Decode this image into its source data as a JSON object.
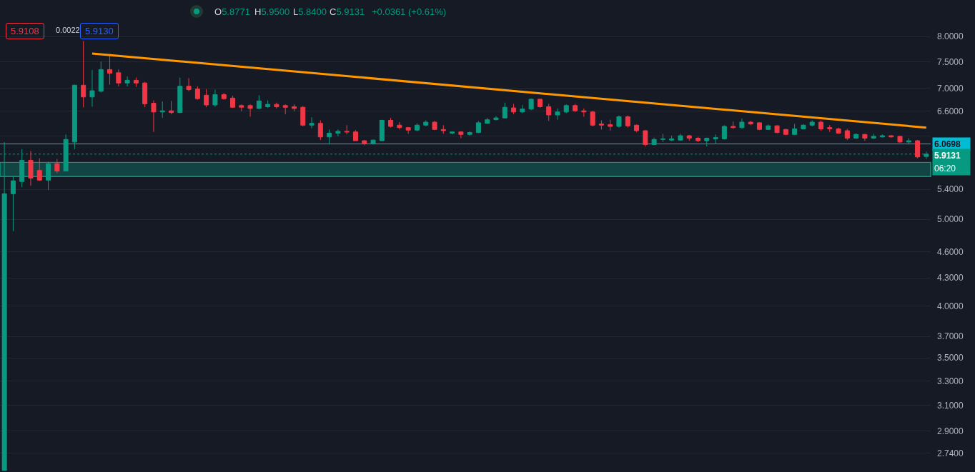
{
  "chart_data": {
    "type": "candlestick",
    "categories": [
      null,
      null,
      null,
      null,
      null,
      null,
      null,
      null,
      null,
      null,
      null,
      null,
      null,
      null,
      null,
      null,
      null,
      null,
      null,
      null,
      null,
      null,
      null,
      null,
      null,
      null,
      null,
      null,
      null,
      null,
      null,
      null,
      null,
      null,
      null,
      null,
      null,
      null,
      null,
      null,
      null,
      null,
      null,
      null,
      null,
      null,
      null,
      null,
      null,
      null,
      null,
      null,
      null,
      null,
      null,
      null,
      null,
      null,
      null,
      null,
      null,
      null,
      null,
      null,
      null,
      null,
      null,
      null,
      null,
      null,
      null,
      null,
      null,
      null,
      null,
      null,
      null,
      null,
      null,
      null,
      null,
      null,
      null,
      null,
      null,
      null,
      null,
      null,
      null,
      null,
      null,
      null,
      null,
      null,
      null,
      null,
      null,
      null,
      null,
      null,
      null,
      null,
      null,
      null,
      null,
      null
    ],
    "ohlc": [
      [
        2.62,
        6.1,
        2.62,
        5.34
      ],
      [
        5.34,
        5.59,
        4.85,
        5.52
      ],
      [
        5.51,
        5.99,
        5.43,
        5.82
      ],
      [
        5.82,
        5.96,
        5.45,
        5.56
      ],
      [
        5.67,
        5.85,
        5.52,
        5.53
      ],
      [
        5.53,
        5.8,
        5.39,
        5.77
      ],
      [
        5.77,
        5.84,
        5.63,
        5.66
      ],
      [
        5.66,
        6.22,
        5.66,
        6.14
      ],
      [
        6.1,
        7.07,
        5.99,
        7.06
      ],
      [
        7.06,
        7.91,
        6.67,
        6.85
      ],
      [
        6.85,
        7.34,
        6.68,
        6.96
      ],
      [
        6.95,
        7.5,
        6.93,
        7.35
      ],
      [
        7.35,
        7.65,
        7.07,
        7.28
      ],
      [
        7.29,
        7.35,
        7.04,
        7.1
      ],
      [
        7.1,
        7.22,
        7.04,
        7.15
      ],
      [
        7.15,
        7.2,
        7.03,
        7.1
      ],
      [
        7.1,
        7.12,
        6.67,
        6.73
      ],
      [
        6.74,
        6.79,
        6.26,
        6.59
      ],
      [
        6.59,
        6.77,
        6.49,
        6.61
      ],
      [
        6.61,
        6.78,
        6.55,
        6.58
      ],
      [
        6.58,
        7.2,
        6.57,
        7.04
      ],
      [
        7.04,
        7.19,
        6.95,
        6.98
      ],
      [
        6.99,
        7.04,
        6.8,
        6.82
      ],
      [
        6.88,
        6.99,
        6.67,
        6.71
      ],
      [
        6.71,
        6.98,
        6.68,
        6.89
      ],
      [
        6.89,
        6.92,
        6.8,
        6.82
      ],
      [
        6.83,
        6.87,
        6.66,
        6.67
      ],
      [
        6.7,
        6.72,
        6.6,
        6.67
      ],
      [
        6.7,
        6.72,
        6.51,
        6.65
      ],
      [
        6.65,
        6.88,
        6.64,
        6.78
      ],
      [
        6.68,
        6.79,
        6.66,
        6.72
      ],
      [
        6.72,
        6.75,
        6.65,
        6.68
      ],
      [
        6.7,
        6.72,
        6.55,
        6.67
      ],
      [
        6.68,
        6.72,
        6.6,
        6.65
      ],
      [
        6.67,
        6.69,
        6.35,
        6.37
      ],
      [
        6.37,
        6.5,
        6.32,
        6.4
      ],
      [
        6.4,
        6.45,
        6.13,
        6.18
      ],
      [
        6.18,
        6.3,
        6.06,
        6.24
      ],
      [
        6.24,
        6.3,
        6.19,
        6.27
      ],
      [
        6.27,
        6.37,
        6.22,
        6.26
      ],
      [
        6.26,
        6.29,
        6.12,
        6.12
      ],
      [
        6.12,
        6.13,
        6.05,
        6.07
      ],
      [
        6.07,
        6.14,
        6.06,
        6.13
      ],
      [
        6.12,
        6.46,
        6.11,
        6.45
      ],
      [
        6.45,
        6.49,
        6.33,
        6.35
      ],
      [
        6.37,
        6.42,
        6.3,
        6.33
      ],
      [
        6.33,
        6.34,
        6.23,
        6.29
      ],
      [
        6.29,
        6.4,
        6.27,
        6.37
      ],
      [
        6.37,
        6.45,
        6.35,
        6.42
      ],
      [
        6.42,
        6.44,
        6.29,
        6.3
      ],
      [
        6.3,
        6.37,
        6.23,
        6.28
      ],
      [
        6.24,
        6.27,
        6.22,
        6.26
      ],
      [
        6.26,
        6.27,
        6.16,
        6.22
      ],
      [
        6.22,
        6.27,
        6.2,
        6.25
      ],
      [
        6.25,
        6.44,
        6.24,
        6.41
      ],
      [
        6.4,
        6.49,
        6.39,
        6.46
      ],
      [
        6.46,
        6.52,
        6.45,
        6.49
      ],
      [
        6.49,
        6.75,
        6.48,
        6.67
      ],
      [
        6.66,
        6.73,
        6.55,
        6.59
      ],
      [
        6.59,
        6.71,
        6.57,
        6.64
      ],
      [
        6.64,
        6.82,
        6.62,
        6.81
      ],
      [
        6.81,
        6.82,
        6.66,
        6.68
      ],
      [
        6.68,
        6.73,
        6.44,
        6.54
      ],
      [
        6.54,
        6.65,
        6.46,
        6.59
      ],
      [
        6.59,
        6.72,
        6.57,
        6.7
      ],
      [
        6.7,
        6.73,
        6.59,
        6.61
      ],
      [
        6.61,
        6.65,
        6.51,
        6.59
      ],
      [
        6.59,
        6.61,
        6.35,
        6.37
      ],
      [
        6.39,
        6.45,
        6.3,
        6.37
      ],
      [
        6.38,
        6.46,
        6.28,
        6.35
      ],
      [
        6.35,
        6.53,
        6.33,
        6.51
      ],
      [
        6.51,
        6.53,
        6.33,
        6.36
      ],
      [
        6.37,
        6.38,
        6.26,
        6.28
      ],
      [
        6.28,
        6.29,
        6.03,
        6.06
      ],
      [
        6.06,
        6.17,
        6.05,
        6.14
      ],
      [
        6.14,
        6.23,
        6.1,
        6.15
      ],
      [
        6.13,
        6.2,
        6.11,
        6.15
      ],
      [
        6.13,
        6.23,
        6.12,
        6.2
      ],
      [
        6.2,
        6.21,
        6.12,
        6.16
      ],
      [
        6.16,
        6.18,
        6.1,
        6.12
      ],
      [
        6.12,
        6.17,
        6.03,
        6.16
      ],
      [
        6.15,
        6.22,
        6.07,
        6.17
      ],
      [
        6.15,
        6.37,
        6.14,
        6.35
      ],
      [
        6.35,
        6.43,
        6.31,
        6.33
      ],
      [
        6.33,
        6.48,
        6.31,
        6.42
      ],
      [
        6.42,
        6.44,
        6.37,
        6.39
      ],
      [
        6.41,
        6.42,
        6.29,
        6.3
      ],
      [
        6.3,
        6.38,
        6.29,
        6.36
      ],
      [
        6.36,
        6.37,
        6.24,
        6.25
      ],
      [
        6.3,
        6.31,
        6.21,
        6.22
      ],
      [
        6.22,
        6.39,
        6.21,
        6.31
      ],
      [
        6.31,
        6.39,
        6.3,
        6.37
      ],
      [
        6.37,
        6.45,
        6.35,
        6.42
      ],
      [
        6.42,
        6.45,
        6.28,
        6.31
      ],
      [
        6.33,
        6.37,
        6.26,
        6.31
      ],
      [
        6.31,
        6.33,
        6.23,
        6.24
      ],
      [
        6.28,
        6.31,
        6.13,
        6.16
      ],
      [
        6.16,
        6.24,
        6.15,
        6.22
      ],
      [
        6.22,
        6.23,
        6.12,
        6.16
      ],
      [
        6.16,
        6.23,
        6.15,
        6.19
      ],
      [
        6.18,
        6.22,
        6.17,
        6.2
      ],
      [
        6.2,
        6.21,
        6.17,
        6.18
      ],
      [
        6.19,
        6.2,
        6.09,
        6.1
      ],
      [
        6.1,
        6.16,
        6.06,
        6.12
      ],
      [
        6.12,
        6.13,
        5.85,
        5.87
      ],
      [
        5.8771,
        5.95,
        5.84,
        5.9131
      ]
    ],
    "colors": [
      "#089981",
      "#089981",
      "#089981",
      "#f23645",
      "#f23645",
      "#089981",
      "#f23645",
      "#089981",
      "#089981",
      "#f23645",
      "#089981",
      "#089981",
      "#f23645",
      "#f23645",
      "#089981",
      "#f23645",
      "#f23645",
      "#f23645",
      "#089981",
      "#f23645",
      "#089981",
      "#f23645",
      "#f23645",
      "#f23645",
      "#089981",
      "#f23645",
      "#f23645",
      "#f23645",
      "#f23645",
      "#089981",
      "#089981",
      "#f23645",
      "#f23645",
      "#f23645",
      "#f23645",
      "#089981",
      "#f23645",
      "#089981",
      "#089981",
      "#f23645",
      "#f23645",
      "#f23645",
      "#089981",
      "#089981",
      "#f23645",
      "#f23645",
      "#f23645",
      "#089981",
      "#089981",
      "#f23645",
      "#f23645",
      "#089981",
      "#f23645",
      "#089981",
      "#089981",
      "#089981",
      "#089981",
      "#089981",
      "#f23645",
      "#089981",
      "#089981",
      "#f23645",
      "#f23645",
      "#089981",
      "#089981",
      "#f23645",
      "#f23645",
      "#f23645",
      "#f23645",
      "#f23645",
      "#089981",
      "#f23645",
      "#f23645",
      "#f23645",
      "#089981",
      "#089981",
      "#089981",
      "#089981",
      "#f23645",
      "#f23645",
      "#089981",
      "#089981",
      "#089981",
      "#f23645",
      "#089981",
      "#f23645",
      "#f23645",
      "#089981",
      "#f23645",
      "#f23645",
      "#089981",
      "#089981",
      "#089981",
      "#f23645",
      "#f23645",
      "#f23645",
      "#f23645",
      "#089981",
      "#f23645",
      "#089981",
      "#089981",
      "#f23645",
      "#f23645",
      "#089981",
      "#f23645",
      "#089981"
    ],
    "series": [
      {
        "type": "line",
        "color": "#ff9800",
        "values": [
          null,
          null,
          null,
          null,
          null,
          null,
          null,
          null,
          null,
          null,
          7.66,
          null,
          null,
          null,
          null,
          null,
          null,
          null,
          null,
          null,
          null,
          null,
          null,
          null,
          null,
          null,
          null,
          null,
          null,
          null,
          null,
          null,
          null,
          null,
          null,
          null,
          null,
          null,
          null,
          null,
          null,
          null,
          null,
          null,
          null,
          null,
          null,
          null,
          null,
          null,
          null,
          null,
          null,
          null,
          null,
          null,
          null,
          null,
          null,
          null,
          null,
          null,
          null,
          null,
          null,
          null,
          null,
          null,
          null,
          null,
          null,
          null,
          null,
          null,
          null,
          null,
          null,
          null,
          null,
          null,
          null,
          null,
          null,
          null,
          null,
          null,
          null,
          null,
          null,
          null,
          null,
          null,
          null,
          null,
          null,
          null,
          null,
          null,
          null,
          null,
          null,
          null,
          null,
          null,
          null,
          6.33
        ]
      }
    ],
    "ylim": [
      2.61,
      8.79
    ],
    "yticks": [
      {
        "value": 8,
        "label": "8.0000"
      },
      {
        "value": 7.5,
        "label": "7.5000"
      },
      {
        "value": 7,
        "label": "7.0000"
      },
      {
        "value": 6.6,
        "label": "6.6000"
      },
      {
        "value": 6.2,
        "label": null
      },
      {
        "value": 5.8,
        "label": null
      },
      {
        "value": 5.4,
        "label": "5.4000"
      },
      {
        "value": 5,
        "label": "5.0000"
      },
      {
        "value": 4.6,
        "label": "4.6000"
      },
      {
        "value": 4.3,
        "label": "4.3000"
      },
      {
        "value": 4,
        "label": "4.0000"
      },
      {
        "value": 3.7,
        "label": "3.7000"
      },
      {
        "value": 3.5,
        "label": "3.5000"
      },
      {
        "value": 3.3,
        "label": "3.3000"
      },
      {
        "value": 3.1,
        "label": "3.1000"
      },
      {
        "value": 2.9,
        "label": "2.9000"
      },
      {
        "value": 2.74,
        "label": "2.7400"
      }
    ],
    "log": "y",
    "grid": "y",
    "tick_labels": "y",
    "ref_lines": [
      {
        "axis": "y",
        "value": 6.0698,
        "label": "6.0698",
        "color": "#00bcd4",
        "line_style": "solid"
      },
      {
        "axis": "y",
        "value": 5.9131,
        "label": "5.9131",
        "color": "#089981",
        "line_style": "dotted"
      }
    ],
    "bands": [
      {
        "axis": "y",
        "from": 5.58,
        "to": 5.79,
        "color": "#089981"
      }
    ],
    "annotations": [
      "O5.8771",
      "H5.9500",
      "L5.8400",
      "C5.9131",
      "+0.0361 (+0.61%)",
      "5.9108",
      "0.0022",
      "5.9130",
      "06:20"
    ]
  }
}
